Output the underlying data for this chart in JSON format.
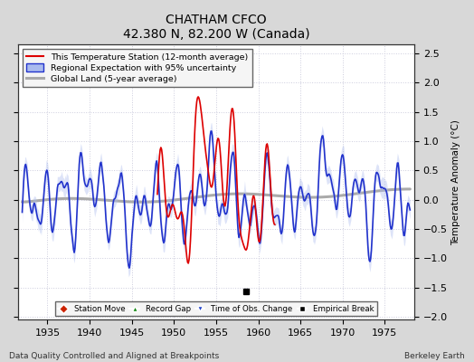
{
  "title": "CHATHAM CFCO",
  "subtitle": "42.380 N, 82.200 W (Canada)",
  "footer_left": "Data Quality Controlled and Aligned at Breakpoints",
  "footer_right": "Berkeley Earth",
  "xlim": [
    1931.5,
    1978.5
  ],
  "ylim": [
    -2.05,
    2.65
  ],
  "yticks": [
    -2,
    -1.5,
    -1,
    -0.5,
    0,
    0.5,
    1,
    1.5,
    2,
    2.5
  ],
  "xticks": [
    1935,
    1940,
    1945,
    1950,
    1955,
    1960,
    1965,
    1970,
    1975
  ],
  "fig_bg_color": "#d8d8d8",
  "plot_bg_color": "#ffffff",
  "grid_color": "#ccccdd",
  "empirical_break_x": 1958.6,
  "empirical_break_y": -1.57,
  "station_color": "#dd0000",
  "regional_color": "#2233cc",
  "regional_band_color": "#aabbee",
  "global_color": "#aaaaaa",
  "station_lw": 1.2,
  "regional_lw": 1.2,
  "global_lw": 2.2
}
